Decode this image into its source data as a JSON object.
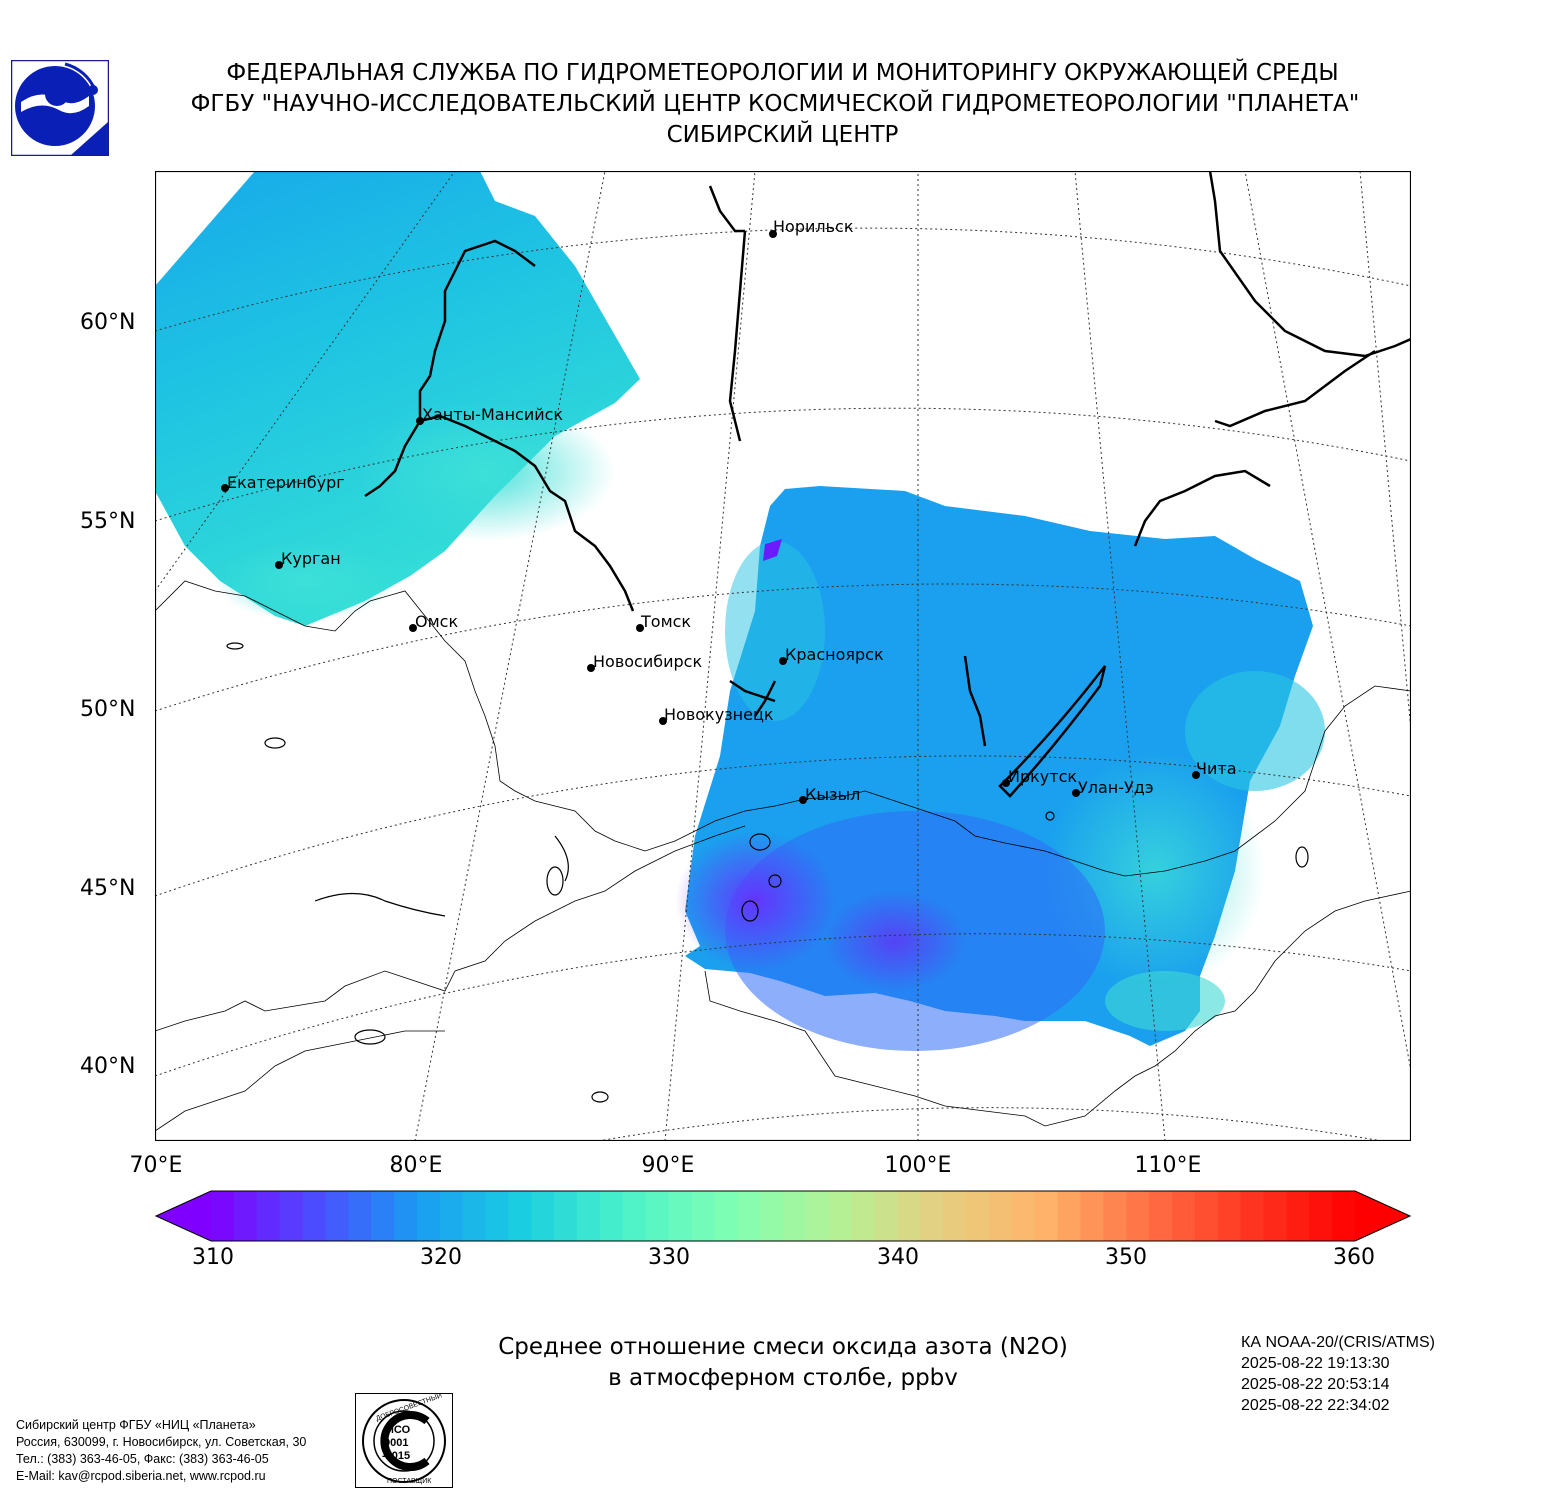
{
  "header": {
    "line1": "ФЕДЕРАЛЬНАЯ СЛУЖБА ПО ГИДРОМЕТЕОРОЛОГИИ И МОНИТОРИНГУ ОКРУЖАЮЩЕЙ СРЕДЫ",
    "line2": "ФГБУ \"НАУЧНО-ИССЛЕДОВАТЕЛЬСКИЙ ЦЕНТР КОСМИЧЕСКОЙ ГИДРОМЕТЕОРОЛОГИИ \"ПЛАНЕТА\"",
    "line3": "СИБИРСКИЙ ЦЕНТР"
  },
  "map": {
    "lat_labels": [
      "60°N",
      "55°N",
      "50°N",
      "45°N",
      "40°N"
    ],
    "lon_labels": [
      "70°E",
      "80°E",
      "90°E",
      "100°E",
      "110°E"
    ],
    "cities": [
      {
        "name": "Норильск"
      },
      {
        "name": "Ханты-Мансийск"
      },
      {
        "name": "Екатеринбург"
      },
      {
        "name": "Курган"
      },
      {
        "name": "Омск"
      },
      {
        "name": "Томск"
      },
      {
        "name": "Новосибирск"
      },
      {
        "name": "Красноярск"
      },
      {
        "name": "Новокузнецк"
      },
      {
        "name": "Кызыл"
      },
      {
        "name": "Иркутск"
      },
      {
        "name": "Улан-Удэ"
      },
      {
        "name": "Чита"
      }
    ]
  },
  "colorbar": {
    "ticks": [
      "310",
      "320",
      "330",
      "340",
      "350",
      "360"
    ],
    "min": 310,
    "max": 360,
    "colors": [
      "#8000ff",
      "#4c4cff",
      "#1a9cf2",
      "#1acfe0",
      "#4cf2c8",
      "#80ffb4",
      "#b4f296",
      "#e5cf80",
      "#ffb46a",
      "#ff7045",
      "#ff3520",
      "#ff0000"
    ]
  },
  "title": {
    "line1": "Среднее отношение смеси оксида азота (N2O)",
    "line2": "в атмосферном столбе, ppbv"
  },
  "satellite": {
    "name": "КА NOAA-20/(CRIS/ATMS)",
    "times": [
      "2025-08-22 19:13:30",
      "2025-08-22 20:53:14",
      "2025-08-22 22:34:02"
    ]
  },
  "footer": {
    "line1": "Сибирский центр ФГБУ «НИЦ «Планета»",
    "line2": "Россия, 630099, г. Новосибирск, ул. Советская, 30",
    "line3": "Тел.: (383) 363-46-05, Факс: (383) 363-46-05",
    "line4": "E-Mail: kav@rcpod.siberia.net, www.rcpod.ru"
  },
  "iso_stamp": {
    "top_text": "ДОБРОСОВЕСТНЫЙ",
    "center_text": "ИСО 9001 -2015",
    "bottom_text": "ПОСТАВЩИК"
  }
}
